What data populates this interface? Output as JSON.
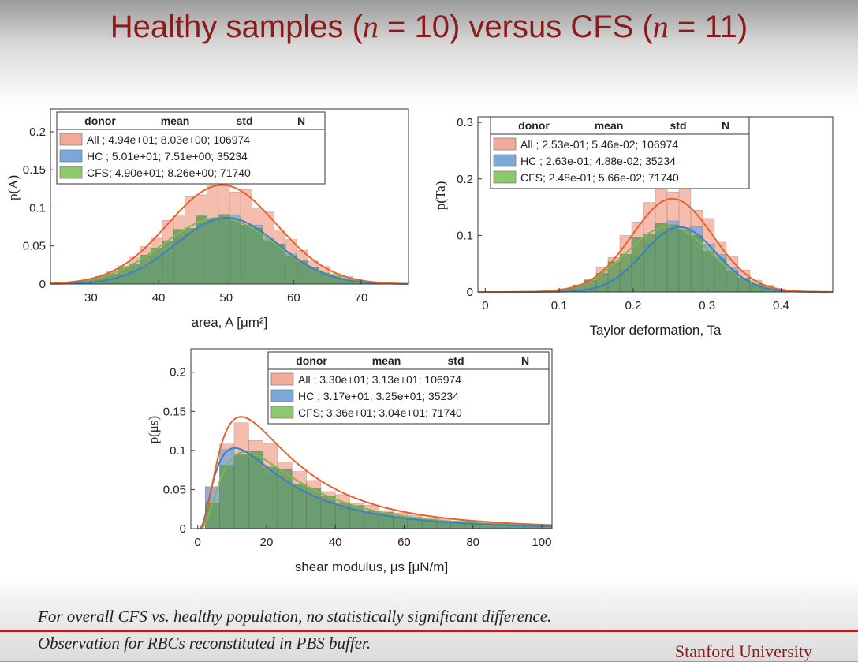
{
  "title": {
    "prefix": "Healthy samples (",
    "n1": "n",
    "mid": " = 10) versus CFS (",
    "n2": "n",
    "suffix": " = 11)"
  },
  "colors": {
    "all": "#f4aa98",
    "hc": "#7aa9d9",
    "cfs": "#8dc86b",
    "overlap": "#5f9a5a",
    "all_fit": "#e8622a",
    "hc_fit": "#3a7fc9",
    "cfs_fit": "#7ab852",
    "title": "#8b1a1a"
  },
  "legend_header": {
    "donor": "donor",
    "mean": "mean",
    "std": "std",
    "N": "N"
  },
  "chart_data": [
    {
      "type": "histogram",
      "xlabel": "area, A [μm²]",
      "ylabel": "p(A)",
      "xlim": [
        24,
        77
      ],
      "ylim": [
        0,
        0.23
      ],
      "xticks": [
        30,
        40,
        50,
        60,
        70
      ],
      "yticks": [
        0,
        0.05,
        0.1,
        0.15,
        0.2
      ],
      "ytick_labels": [
        "0",
        "0.05",
        "0.1",
        "0.15",
        "0.2"
      ],
      "legend_position": "top-left",
      "legend": [
        {
          "donor": "All",
          "text": "All   ; 4.94e+01;  8.03e+00;  106974"
        },
        {
          "donor": "HC",
          "text": "HC   ; 5.01e+01;  7.51e+00;  35234"
        },
        {
          "donor": "CFS",
          "text": "CFS; 4.90e+01;  8.26e+00;  71740"
        }
      ],
      "series": [
        {
          "name": "All",
          "mean": 49.4,
          "std": 8.03,
          "N": 106974,
          "bar_peak": 0.13,
          "fit_peak": 0.13
        },
        {
          "name": "HC",
          "mean": 50.1,
          "std": 7.51,
          "N": 35234,
          "bar_peak": 0.088,
          "fit_peak": 0.087
        },
        {
          "name": "CFS",
          "mean": 49.0,
          "std": 8.26,
          "N": 71740,
          "bar_peak": 0.089,
          "fit_peak": 0.087
        }
      ]
    },
    {
      "type": "histogram",
      "xlabel": "Taylor deformation, Ta",
      "ylabel": "p(Ta)",
      "xlim": [
        -0.01,
        0.47
      ],
      "ylim": [
        0,
        0.31
      ],
      "xticks": [
        0,
        0.1,
        0.2,
        0.3,
        0.4
      ],
      "yticks": [
        0,
        0.1,
        0.2,
        0.3
      ],
      "ytick_labels": [
        "0",
        "0.1",
        "0.2",
        "0.3"
      ],
      "legend_position": "top-right",
      "legend": [
        {
          "donor": "All",
          "text": "All   ; 2.53e-01;  5.46e-02;  106974"
        },
        {
          "donor": "HC",
          "text": "HC   ; 2.63e-01;  4.88e-02;  35234"
        },
        {
          "donor": "CFS",
          "text": "CFS; 2.48e-01;  5.66e-02;  71740"
        }
      ],
      "series": [
        {
          "name": "All",
          "mean": 0.253,
          "std": 0.0546,
          "N": 106974,
          "bar_peak": 0.185,
          "fit_peak": 0.165
        },
        {
          "name": "HC",
          "mean": 0.263,
          "std": 0.0488,
          "N": 35234,
          "bar_peak": 0.122,
          "fit_peak": 0.115
        },
        {
          "name": "CFS",
          "mean": 0.248,
          "std": 0.0566,
          "N": 71740,
          "bar_peak": 0.12,
          "fit_peak": 0.116
        }
      ]
    },
    {
      "type": "histogram",
      "xlabel": "shear modulus, μs [μN/m]",
      "ylabel": "p(μs)",
      "xlim": [
        -2,
        103
      ],
      "ylim": [
        0,
        0.23
      ],
      "xticks": [
        0,
        20,
        40,
        60,
        80,
        100
      ],
      "yticks": [
        0,
        0.05,
        0.1,
        0.15,
        0.2
      ],
      "ytick_labels": [
        "0",
        "0.05",
        "0.1",
        "0.15",
        "0.2"
      ],
      "legend_position": "top-right",
      "legend": [
        {
          "donor": "All",
          "text": "All   ; 3.30e+01;  3.13e+01;  106974"
        },
        {
          "donor": "HC",
          "text": "HC   ; 3.17e+01;  3.25e+01;  35234"
        },
        {
          "donor": "CFS",
          "text": "CFS; 3.36e+01;  3.04e+01;  71740"
        }
      ],
      "series": [
        {
          "name": "All",
          "mean": 33.0,
          "std": 31.3,
          "N": 106974,
          "bar_peak": 0.128,
          "fit_peak": 0.143
        },
        {
          "name": "HC",
          "mean": 31.7,
          "std": 32.5,
          "N": 35234,
          "bar_peak": 0.1,
          "fit_peak": 0.103
        },
        {
          "name": "CFS",
          "mean": 33.6,
          "std": 30.4,
          "N": 71740,
          "bar_peak": 0.098,
          "fit_peak": 0.098
        }
      ]
    }
  ],
  "notes": {
    "line1": "For overall CFS vs. healthy population, no statistically significant difference.",
    "line2": "Observation for RBCs reconstituted in PBS buffer."
  },
  "logo": "Stanford University"
}
